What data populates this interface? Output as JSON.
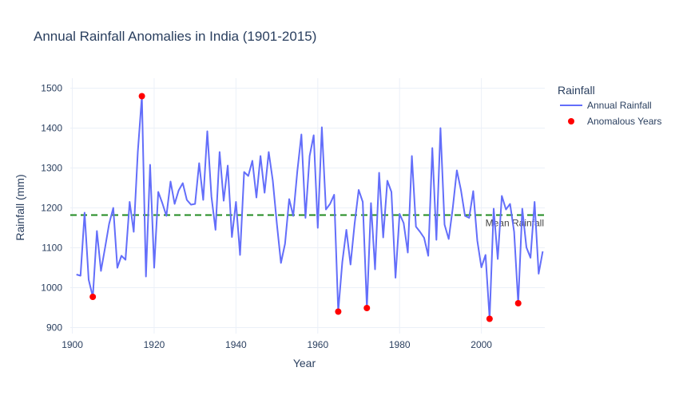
{
  "chart_data": {
    "type": "line",
    "title": "Annual Rainfall Anomalies in India (1901-2015)",
    "xlabel": "Year",
    "ylabel": "Rainfall (mm)",
    "xlim": [
      1899.5,
      2015.5
    ],
    "ylim": [
      885,
      1525
    ],
    "xticks": [
      1900,
      1920,
      1940,
      1960,
      1980,
      2000
    ],
    "yticks": [
      900,
      1000,
      1100,
      1200,
      1300,
      1400,
      1500
    ],
    "grid": true,
    "legend": {
      "title": "Rainfall",
      "position": "right-top"
    },
    "series": [
      {
        "name": "Annual Rainfall",
        "mode": "line",
        "color": "#636efa",
        "x": [
          1901,
          1902,
          1903,
          1904,
          1905,
          1906,
          1907,
          1908,
          1909,
          1910,
          1911,
          1912,
          1913,
          1914,
          1915,
          1916,
          1917,
          1918,
          1919,
          1920,
          1921,
          1922,
          1923,
          1924,
          1925,
          1926,
          1927,
          1928,
          1929,
          1930,
          1931,
          1932,
          1933,
          1934,
          1935,
          1936,
          1937,
          1938,
          1939,
          1940,
          1941,
          1942,
          1943,
          1944,
          1945,
          1946,
          1947,
          1948,
          1949,
          1950,
          1951,
          1952,
          1953,
          1954,
          1955,
          1956,
          1957,
          1958,
          1959,
          1960,
          1961,
          1962,
          1963,
          1964,
          1965,
          1966,
          1967,
          1968,
          1969,
          1970,
          1971,
          1972,
          1973,
          1974,
          1975,
          1976,
          1977,
          1978,
          1979,
          1980,
          1981,
          1982,
          1983,
          1984,
          1985,
          1986,
          1987,
          1988,
          1989,
          1990,
          1991,
          1992,
          1993,
          1994,
          1995,
          1996,
          1997,
          1998,
          1999,
          2000,
          2001,
          2002,
          2003,
          2004,
          2005,
          2006,
          2007,
          2008,
          2009,
          2010,
          2011,
          2012,
          2013,
          2014,
          2015
        ],
        "y": [
          1033,
          1030,
          1188,
          1020,
          977,
          1142,
          1042,
          1100,
          1160,
          1200,
          1050,
          1080,
          1070,
          1215,
          1140,
          1340,
          1480,
          1028,
          1308,
          1050,
          1240,
          1212,
          1180,
          1266,
          1210,
          1244,
          1262,
          1220,
          1208,
          1210,
          1312,
          1220,
          1392,
          1228,
          1145,
          1340,
          1218,
          1306,
          1127,
          1215,
          1082,
          1290,
          1280,
          1318,
          1226,
          1330,
          1238,
          1340,
          1268,
          1160,
          1062,
          1110,
          1222,
          1180,
          1292,
          1384,
          1175,
          1330,
          1382,
          1150,
          1402,
          1196,
          1210,
          1233,
          940,
          1064,
          1145,
          1058,
          1160,
          1245,
          1215,
          949,
          1212,
          1046,
          1288,
          1126,
          1268,
          1240,
          1025,
          1185,
          1162,
          1088,
          1330,
          1153,
          1140,
          1125,
          1080,
          1350,
          1120,
          1400,
          1158,
          1122,
          1200,
          1294,
          1245,
          1180,
          1175,
          1242,
          1118,
          1051,
          1082,
          922,
          1198,
          1072,
          1230,
          1196,
          1210,
          1140,
          961,
          1198,
          1101,
          1075,
          1215,
          1035,
          1091
        ]
      },
      {
        "name": "Anomalous Years",
        "mode": "markers",
        "color": "#ff0000",
        "x": [
          1905,
          1917,
          1965,
          1972,
          2002,
          2009
        ],
        "y": [
          977,
          1480,
          940,
          949,
          922,
          961
        ]
      }
    ],
    "reference_line": {
      "y": 1182,
      "color": "#228b22",
      "label": "Mean Rainfall"
    }
  }
}
